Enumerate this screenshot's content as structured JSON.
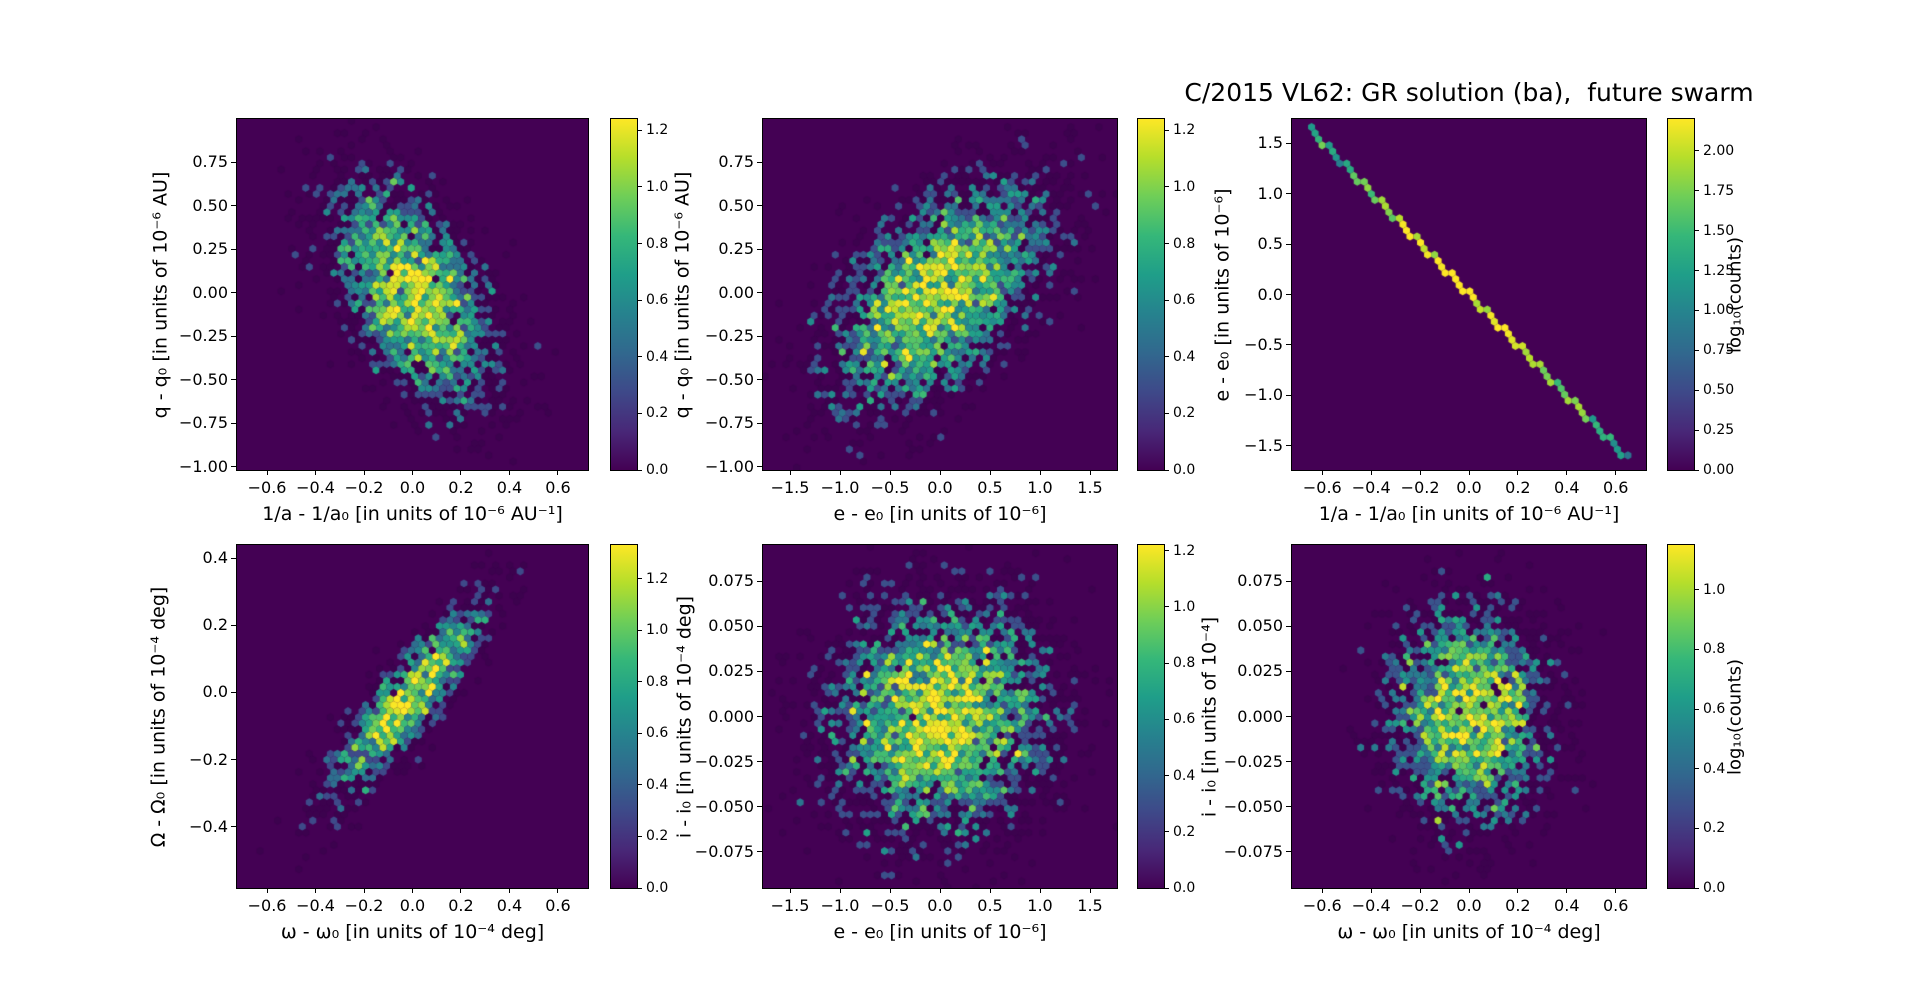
{
  "title": "C/2015 VL62: GR solution (ba),  future swarm",
  "palette": {
    "figure_background": "#ffffff",
    "axes_background": "#440154",
    "text_color": "#000000",
    "count1_hex_color": "#3c024e",
    "viridis": [
      "#440154",
      "#482878",
      "#3e4989",
      "#31688e",
      "#26828e",
      "#1f9e89",
      "#35b779",
      "#6ece58",
      "#b5de2b",
      "#fde725"
    ]
  },
  "chart_data": [
    {
      "id": "top-left",
      "type": "hexbin",
      "xlabel": "1/a - 1/a₀ [in units of 10⁻⁶ AU⁻¹]",
      "ylabel": "q - q₀ [in units of 10⁻⁶ AU]",
      "xlim": [
        -0.724,
        0.724
      ],
      "ylim": [
        -1.02,
        1.0
      ],
      "xticks": {
        "values": [
          -0.6,
          -0.4,
          -0.2,
          0.0,
          0.2,
          0.4,
          0.6
        ],
        "labels": [
          "−0.6",
          "−0.4",
          "−0.2",
          "0.0",
          "0.2",
          "0.4",
          "0.6"
        ]
      },
      "yticks": {
        "values": [
          0.75,
          0.5,
          0.25,
          0.0,
          -0.25,
          -0.5,
          -0.75,
          -1.0
        ],
        "labels": [
          "0.75",
          "0.50",
          "0.25",
          "0.00",
          "−0.25",
          "−0.50",
          "−0.75",
          "−1.00"
        ]
      },
      "colorbar": {
        "vmin": 0,
        "vmax": 1.24,
        "ticks": [
          0.0,
          0.2,
          0.4,
          0.6,
          0.8,
          1.0,
          1.2
        ],
        "tick_labels": [
          "0.0",
          "0.2",
          "0.4",
          "0.6",
          "0.8",
          "1.0",
          "1.2"
        ],
        "label": ""
      },
      "density_model": {
        "kind": "gauss2d",
        "cx": 0,
        "cy": 0,
        "sx": 0.165,
        "sy": 0.31,
        "rho": -0.52,
        "peak": 12,
        "seed": 11
      }
    },
    {
      "id": "top-middle",
      "type": "hexbin",
      "xlabel": "e - e₀ [in units of 10⁻⁶]",
      "ylabel": "q - q₀ [in units of 10⁻⁶ AU]",
      "xlim": [
        -1.77,
        1.77
      ],
      "ylim": [
        -1.02,
        1.0
      ],
      "xticks": {
        "values": [
          -1.5,
          -1.0,
          -0.5,
          0.0,
          0.5,
          1.0,
          1.5
        ],
        "labels": [
          "−1.5",
          "−1.0",
          "−0.5",
          "0.0",
          "0.5",
          "1.0",
          "1.5"
        ]
      },
      "yticks": {
        "values": [
          0.75,
          0.5,
          0.25,
          0.0,
          -0.25,
          -0.5,
          -0.75,
          -1.0
        ],
        "labels": [
          "0.75",
          "0.50",
          "0.25",
          "0.00",
          "−0.25",
          "−0.50",
          "−0.75",
          "−1.00"
        ]
      },
      "colorbar": {
        "vmin": 0,
        "vmax": 1.24,
        "ticks": [
          0.0,
          0.2,
          0.4,
          0.6,
          0.8,
          1.0,
          1.2
        ],
        "tick_labels": [
          "0.0",
          "0.2",
          "0.4",
          "0.6",
          "0.8",
          "1.0",
          "1.2"
        ],
        "label": ""
      },
      "density_model": {
        "kind": "gauss2d",
        "cx": 0,
        "cy": 0,
        "sx": 0.52,
        "sy": 0.31,
        "rho": 0.52,
        "peak": 12,
        "seed": 22
      }
    },
    {
      "id": "top-right",
      "type": "hexbin",
      "xlabel": "1/a - 1/a₀ [in units of 10⁻⁶ AU⁻¹]",
      "ylabel": "e - e₀ [in units of 10⁻⁶]",
      "xlim": [
        -0.724,
        0.724
      ],
      "ylim": [
        -1.74,
        1.74
      ],
      "xticks": {
        "values": [
          -0.6,
          -0.4,
          -0.2,
          0.0,
          0.2,
          0.4,
          0.6
        ],
        "labels": [
          "−0.6",
          "−0.4",
          "−0.2",
          "0.0",
          "0.2",
          "0.4",
          "0.6"
        ]
      },
      "yticks": {
        "values": [
          1.5,
          1.0,
          0.5,
          0.0,
          -0.5,
          -1.0,
          -1.5
        ],
        "labels": [
          "1.5",
          "1.0",
          "0.5",
          "0.0",
          "−0.5",
          "−1.0",
          "−1.5"
        ]
      },
      "colorbar": {
        "vmin": 0,
        "vmax": 2.2,
        "ticks": [
          0.0,
          0.25,
          0.5,
          0.75,
          1.0,
          1.25,
          1.5,
          1.75,
          2.0
        ],
        "tick_labels": [
          "0.00",
          "0.25",
          "0.50",
          "0.75",
          "1.00",
          "1.25",
          "1.50",
          "1.75",
          "2.00"
        ],
        "label": "log₁₀(counts)"
      },
      "density_model": {
        "kind": "line",
        "x1": -0.66,
        "y1": 1.665,
        "x2": 0.66,
        "y2": -1.665,
        "base": 8,
        "peak": 150,
        "s_sigma": 0.19,
        "seed": 33
      }
    },
    {
      "id": "bottom-left",
      "type": "hexbin",
      "xlabel": "ω - ω₀ [in units of 10⁻⁴ deg]",
      "ylabel": "Ω - Ω₀ [in units of 10⁻⁴ deg]",
      "xlim": [
        -0.724,
        0.724
      ],
      "ylim": [
        -0.582,
        0.439
      ],
      "xticks": {
        "values": [
          -0.6,
          -0.4,
          -0.2,
          0.0,
          0.2,
          0.4,
          0.6
        ],
        "labels": [
          "−0.6",
          "−0.4",
          "−0.2",
          "0.0",
          "0.2",
          "0.4",
          "0.6"
        ]
      },
      "yticks": {
        "values": [
          0.4,
          0.2,
          0.0,
          -0.2,
          -0.4
        ],
        "labels": [
          "0.4",
          "0.2",
          "0.0",
          "−0.2",
          "−0.4"
        ]
      },
      "colorbar": {
        "vmin": 0,
        "vmax": 1.33,
        "ticks": [
          0.0,
          0.2,
          0.4,
          0.6,
          0.8,
          1.0,
          1.2
        ],
        "tick_labels": [
          "0.0",
          "0.2",
          "0.4",
          "0.6",
          "0.8",
          "1.0",
          "1.2"
        ],
        "label": ""
      },
      "density_model": {
        "kind": "gauss2d",
        "cx": -0.02,
        "cy": -0.02,
        "sx": 0.155,
        "sy": 0.14,
        "rho": 0.88,
        "peak": 14,
        "seed": 44
      }
    },
    {
      "id": "bottom-middle",
      "type": "hexbin",
      "xlabel": "e - e₀ [in units of 10⁻⁶]",
      "ylabel": "i - i₀ [in units of 10⁻⁴ deg]",
      "xlim": [
        -1.77,
        1.77
      ],
      "ylim": [
        -0.095,
        0.095
      ],
      "xticks": {
        "values": [
          -1.5,
          -1.0,
          -0.5,
          0.0,
          0.5,
          1.0,
          1.5
        ],
        "labels": [
          "−1.5",
          "−1.0",
          "−0.5",
          "0.0",
          "0.5",
          "1.0",
          "1.5"
        ]
      },
      "yticks": {
        "values": [
          0.075,
          0.05,
          0.025,
          0.0,
          -0.025,
          -0.05,
          -0.075
        ],
        "labels": [
          "0.075",
          "0.050",
          "0.025",
          "0.000",
          "−0.025",
          "−0.050",
          "−0.075"
        ]
      },
      "colorbar": {
        "vmin": 0,
        "vmax": 1.22,
        "ticks": [
          0.0,
          0.2,
          0.4,
          0.6,
          0.8,
          1.0,
          1.2
        ],
        "tick_labels": [
          "0.0",
          "0.2",
          "0.4",
          "0.6",
          "0.8",
          "1.0",
          "1.2"
        ],
        "label": ""
      },
      "density_model": {
        "kind": "gauss2d",
        "cx": 0,
        "cy": 0,
        "sx": 0.52,
        "sy": 0.031,
        "rho": 0.05,
        "peak": 12,
        "seed": 55
      }
    },
    {
      "id": "bottom-right",
      "type": "hexbin",
      "xlabel": "ω - ω₀ [in units of 10⁻⁴ deg]",
      "ylabel": "i - i₀ [in units of 10⁻⁴]",
      "xlim": [
        -0.724,
        0.724
      ],
      "ylim": [
        -0.095,
        0.095
      ],
      "xticks": {
        "values": [
          -0.6,
          -0.4,
          -0.2,
          0.0,
          0.2,
          0.4,
          0.6
        ],
        "labels": [
          "−0.6",
          "−0.4",
          "−0.2",
          "0.0",
          "0.2",
          "0.4",
          "0.6"
        ]
      },
      "yticks": {
        "values": [
          0.075,
          0.05,
          0.025,
          0.0,
          -0.025,
          -0.05,
          -0.075
        ],
        "labels": [
          "0.075",
          "0.050",
          "0.025",
          "0.000",
          "−0.025",
          "−0.050",
          "−0.075"
        ]
      },
      "colorbar": {
        "vmin": 0,
        "vmax": 1.15,
        "ticks": [
          0.0,
          0.2,
          0.4,
          0.6,
          0.8,
          1.0
        ],
        "tick_labels": [
          "0.0",
          "0.2",
          "0.4",
          "0.6",
          "0.8",
          "1.0"
        ],
        "label": "log₁₀(counts)"
      },
      "density_model": {
        "kind": "gauss2d",
        "cx": 0,
        "cy": 0,
        "sx": 0.16,
        "sy": 0.03,
        "rho": 0.0,
        "peak": 10,
        "seed": 66
      }
    }
  ]
}
